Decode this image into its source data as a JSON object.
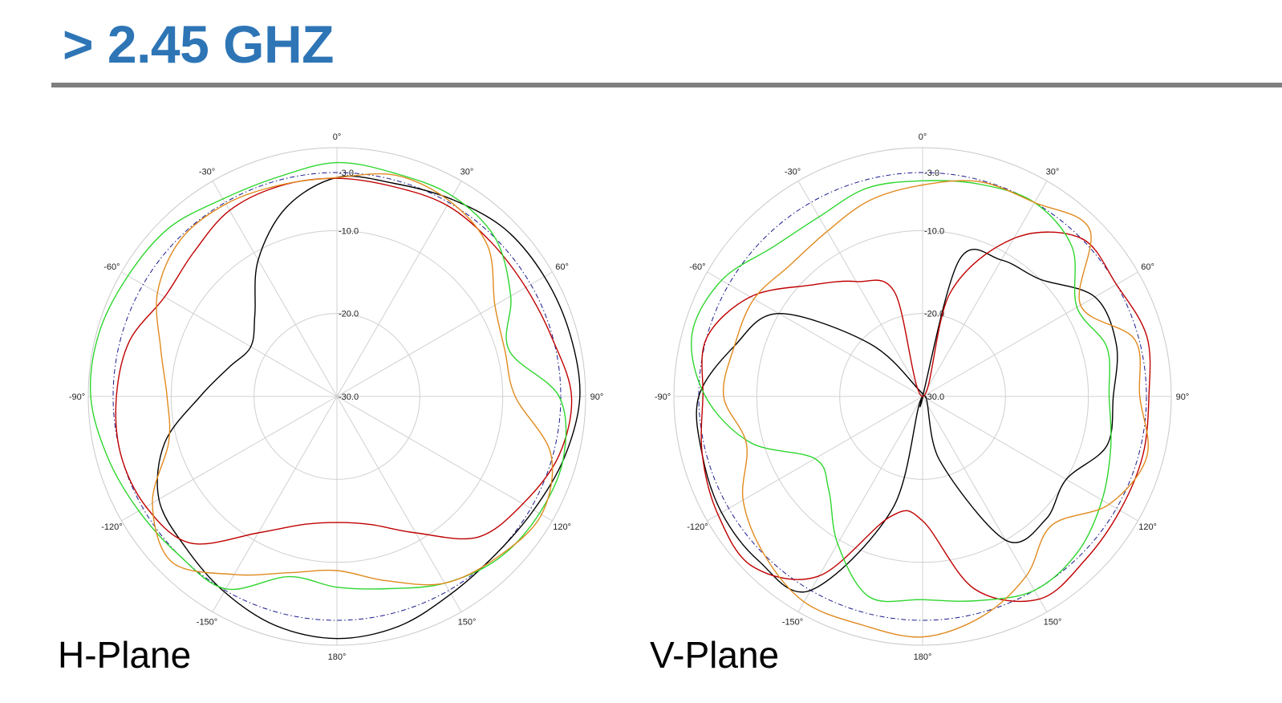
{
  "slide": {
    "title": "> 2.45 GHZ",
    "title_color": "#2e75b6",
    "rule_color": "#7f7f7f"
  },
  "chart_data": [
    {
      "type": "polar-line",
      "title": "H-Plane",
      "radial_range": [
        -30,
        0
      ],
      "radial_ticks": [
        -3.0,
        -10.0,
        -20.0,
        -30.0
      ],
      "radial_tick_labels": [
        "-3.0",
        "-10.0",
        "-20.0",
        "-30.0"
      ],
      "angular_ticks": [
        0,
        30,
        60,
        90,
        120,
        150,
        180,
        -150,
        -120,
        -90,
        -60,
        -30
      ],
      "angular_tick_labels": [
        "0°",
        "30°",
        "60°",
        "90°",
        "120°",
        "150°",
        "180°",
        "-150°",
        "-120°",
        "-90°",
        "-60°",
        "-30°"
      ],
      "grid": true,
      "theta": [
        0,
        15,
        30,
        45,
        60,
        75,
        90,
        105,
        120,
        135,
        150,
        165,
        180,
        -165,
        -150,
        -135,
        -120,
        -105,
        -90,
        -75,
        -60,
        -45,
        -30,
        -15
      ],
      "reference": {
        "color": "#1a1a8c",
        "style": "dash-dot",
        "value": -3.0
      },
      "series": [
        {
          "color": "#000000",
          "r": [
            -3.6,
            -3.4,
            -2.5,
            -1.4,
            -1.1,
            -0.9,
            -0.7,
            -1.6,
            -2.6,
            -3.0,
            -2.5,
            -1.3,
            -0.8,
            -1.4,
            -2.8,
            -4.2,
            -5.2,
            -8.5,
            -13.5,
            -16.5,
            -18.0,
            -16.0,
            -11.0,
            -6.4
          ]
        },
        {
          "color": "#c00000",
          "r": [
            -3.7,
            -3.8,
            -3.4,
            -3.7,
            -3.7,
            -3.1,
            -1.7,
            -2.3,
            -4.1,
            -6.0,
            -11.0,
            -14.0,
            -14.8,
            -14.0,
            -11.0,
            -5.0,
            -3.4,
            -3.0,
            -3.4,
            -4.1,
            -6.0,
            -5.5,
            -4.1,
            -3.7
          ]
        },
        {
          "color": "#2ed62e",
          "r": [
            -1.8,
            -2.2,
            -2.1,
            -3.0,
            -5.8,
            -8.5,
            -3.2,
            -1.7,
            -1.8,
            -2.4,
            -4.0,
            -6.0,
            -7.0,
            -7.5,
            -3.2,
            -3.0,
            -2.4,
            -1.4,
            -0.3,
            -0.3,
            -0.9,
            -1.3,
            -2.5,
            -2.6
          ]
        },
        {
          "color": "#e08a1e",
          "r": [
            -3.6,
            -2.4,
            -2.8,
            -4.3,
            -8.0,
            -9.0,
            -8.5,
            -3.3,
            -1.5,
            -2.6,
            -4.0,
            -7.0,
            -9.0,
            -8.0,
            -5.2,
            -1.8,
            -4.3,
            -9.0,
            -9.5,
            -8.0,
            -5.0,
            -3.3,
            -3.2,
            -3.6
          ]
        }
      ]
    },
    {
      "type": "polar-line",
      "title": "V-Plane",
      "radial_range": [
        -30,
        0
      ],
      "radial_ticks": [
        -3.0,
        -10.0,
        -20.0,
        -30.0
      ],
      "radial_tick_labels": [
        "-3.0",
        "-10.0",
        "-20.0",
        "-30.0"
      ],
      "angular_ticks": [
        0,
        30,
        60,
        90,
        120,
        150,
        180,
        -150,
        -120,
        -90,
        -60,
        -30
      ],
      "angular_tick_labels": [
        "0°",
        "30°",
        "60°",
        "90°",
        "120°",
        "150°",
        "180°",
        "-150°",
        "-120°",
        "-90°",
        "-60°",
        "-30°"
      ],
      "grid": true,
      "theta": [
        0,
        15,
        30,
        45,
        60,
        75,
        90,
        105,
        120,
        135,
        150,
        165,
        180,
        -165,
        -150,
        -135,
        -120,
        -105,
        -90,
        -75,
        -60,
        -45,
        -30,
        -15
      ],
      "reference": {
        "color": "#1a1a8c",
        "style": "dash-dot",
        "value": -3.0
      },
      "series": [
        {
          "color": "#000000",
          "r": [
            -30.0,
            -13.0,
            -11.0,
            -10.0,
            -6.0,
            -5.8,
            -7.0,
            -7.0,
            -10.0,
            -9.0,
            -10.0,
            -22.0,
            -30.0,
            -16.0,
            -3.0,
            -2.0,
            -2.0,
            -2.5,
            -3.0,
            -6.5,
            -10.0,
            -21.0,
            -29.0,
            -30.0
          ]
        },
        {
          "color": "#c00000",
          "r": [
            -30.0,
            -17.0,
            -8.0,
            -3.0,
            -3.0,
            -2.0,
            -2.7,
            -2.5,
            -2.5,
            -2.2,
            -1.8,
            -6.0,
            -15.0,
            -15.0,
            -5.0,
            -1.0,
            -1.5,
            -2.5,
            -3.5,
            -3.0,
            -6.0,
            -11.0,
            -14.0,
            -17.0
          ]
        },
        {
          "color": "#2ed62e",
          "r": [
            -4.0,
            -3.5,
            -3.0,
            -4.5,
            -8.5,
            -7.0,
            -7.5,
            -6.5,
            -5.0,
            -3.5,
            -3.0,
            -4.5,
            -5.5,
            -5.0,
            -9.5,
            -14.0,
            -15.0,
            -8.5,
            -3.8,
            -1.2,
            -2.0,
            -4.5,
            -5.0,
            -4.0
          ]
        },
        {
          "color": "#e08a1e",
          "r": [
            -4.5,
            -3.2,
            -3.0,
            -1.5,
            -8.0,
            -3.5,
            -3.8,
            -2.0,
            -4.0,
            -8.0,
            -5.0,
            -2.5,
            -1.0,
            -1.5,
            -1.4,
            -3.0,
            -5.0,
            -8.0,
            -6.0,
            -6.5,
            -6.5,
            -7.5,
            -7.0,
            -5.5
          ]
        }
      ]
    }
  ]
}
